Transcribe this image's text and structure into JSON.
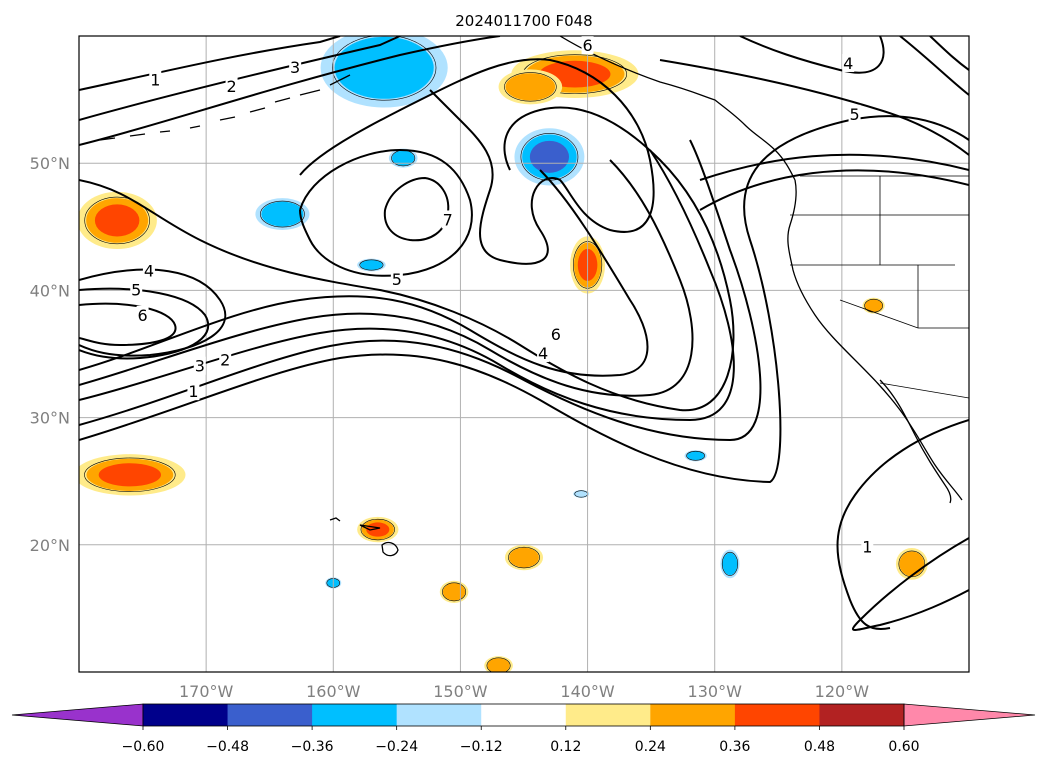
{
  "title": "2024011700 F048",
  "map": {
    "lon_range": [
      -180,
      -110
    ],
    "lat_range": [
      10,
      60
    ],
    "lon_ticks": [
      {
        "lon": -170,
        "label": "170°W"
      },
      {
        "lon": -160,
        "label": "160°W"
      },
      {
        "lon": -150,
        "label": "150°W"
      },
      {
        "lon": -140,
        "label": "140°W"
      },
      {
        "lon": -130,
        "label": "130°W"
      },
      {
        "lon": -120,
        "label": "120°W"
      }
    ],
    "lat_ticks": [
      {
        "lat": 50,
        "label": "50°N"
      },
      {
        "lat": 40,
        "label": "40°N"
      },
      {
        "lat": 30,
        "label": "30°N"
      },
      {
        "lat": 20,
        "label": "20°N"
      }
    ],
    "grid": true
  },
  "colorbar": {
    "orientation": "horizontal",
    "extend": "both",
    "boundaries": [
      -0.6,
      -0.48,
      -0.36,
      -0.24,
      -0.12,
      0.12,
      0.24,
      0.36,
      0.48,
      0.6
    ],
    "colors": [
      "#9932cc",
      "#00008b",
      "#3a5fcd",
      "#00bfff",
      "#b0e2ff",
      "#ffffff",
      "#ffeb8a",
      "#ffa500",
      "#ff4500",
      "#b22222",
      "#ff88aa"
    ],
    "tick_labels": [
      "−0.60",
      "−0.48",
      "−0.36",
      "−0.24",
      "−0.12",
      "0.12",
      "0.24",
      "0.36",
      "0.48",
      "0.60"
    ]
  },
  "contour_labels": [
    {
      "text": "1",
      "lon": -174,
      "lat": 56.5
    },
    {
      "text": "2",
      "lon": -168,
      "lat": 56
    },
    {
      "text": "3",
      "lon": -163,
      "lat": 57.5
    },
    {
      "text": "6",
      "lon": -140,
      "lat": 59.2
    },
    {
      "text": "4",
      "lon": -119.5,
      "lat": 57.8
    },
    {
      "text": "5",
      "lon": -119,
      "lat": 53.8
    },
    {
      "text": "7",
      "lon": -151,
      "lat": 45.5
    },
    {
      "text": "4",
      "lon": -174.5,
      "lat": 41.5
    },
    {
      "text": "5",
      "lon": -175.5,
      "lat": 40
    },
    {
      "text": "6",
      "lon": -175,
      "lat": 38
    },
    {
      "text": "5",
      "lon": -155,
      "lat": 40.8
    },
    {
      "text": "6",
      "lon": -142.5,
      "lat": 36.5
    },
    {
      "text": "4",
      "lon": -143.5,
      "lat": 35
    },
    {
      "text": "3",
      "lon": -170.5,
      "lat": 34
    },
    {
      "text": "2",
      "lon": -168.5,
      "lat": 34.5
    },
    {
      "text": "1",
      "lon": -171,
      "lat": 32
    },
    {
      "text": "1",
      "lon": -118,
      "lat": 19.8
    }
  ],
  "anomalies": [
    {
      "value": 0.42,
      "lon": -177,
      "lat": 45.5,
      "rx": 2.5,
      "ry": 1.8
    },
    {
      "value": 0.38,
      "lon": -176,
      "lat": 25.5,
      "rx": 3.5,
      "ry": 1.3
    },
    {
      "value": 0.42,
      "lon": -141,
      "lat": 57,
      "rx": 4,
      "ry": 1.5
    },
    {
      "value": 0.28,
      "lon": -144.5,
      "lat": 56,
      "rx": 2,
      "ry": 1.1
    },
    {
      "value": 0.42,
      "lon": -140,
      "lat": 42,
      "rx": 1.1,
      "ry": 1.8
    },
    {
      "value": 0.38,
      "lon": -156.5,
      "lat": 21.2,
      "rx": 1.3,
      "ry": 0.8
    },
    {
      "value": 0.3,
      "lon": -145,
      "lat": 19,
      "rx": 1.2,
      "ry": 0.8
    },
    {
      "value": 0.3,
      "lon": -150.5,
      "lat": 16.3,
      "rx": 0.9,
      "ry": 0.7
    },
    {
      "value": 0.3,
      "lon": -147,
      "lat": 10.5,
      "rx": 0.9,
      "ry": 0.6
    },
    {
      "value": 0.3,
      "lon": -114.5,
      "lat": 18.5,
      "rx": 1,
      "ry": 1
    },
    {
      "value": 0.3,
      "lon": -117.5,
      "lat": 38.8,
      "rx": 0.7,
      "ry": 0.5
    },
    {
      "value": -0.35,
      "lon": -156,
      "lat": 57.5,
      "rx": 4,
      "ry": 2.5
    },
    {
      "value": -0.4,
      "lon": -143,
      "lat": 50.5,
      "rx": 2.2,
      "ry": 1.8
    },
    {
      "value": -0.3,
      "lon": -164,
      "lat": 46,
      "rx": 1.7,
      "ry": 1
    },
    {
      "value": -0.28,
      "lon": -154.5,
      "lat": 50.4,
      "rx": 0.9,
      "ry": 0.6
    },
    {
      "value": -0.28,
      "lon": -157,
      "lat": 42,
      "rx": 0.9,
      "ry": 0.4
    },
    {
      "value": -0.25,
      "lon": -131.5,
      "lat": 27,
      "rx": 0.7,
      "ry": 0.35
    },
    {
      "value": -0.25,
      "lon": -128.8,
      "lat": 18.5,
      "rx": 0.6,
      "ry": 0.9
    },
    {
      "value": -0.25,
      "lon": -160,
      "lat": 17,
      "rx": 0.5,
      "ry": 0.35
    },
    {
      "value": -0.22,
      "lon": -140.5,
      "lat": 24,
      "rx": 0.5,
      "ry": 0.25
    }
  ]
}
